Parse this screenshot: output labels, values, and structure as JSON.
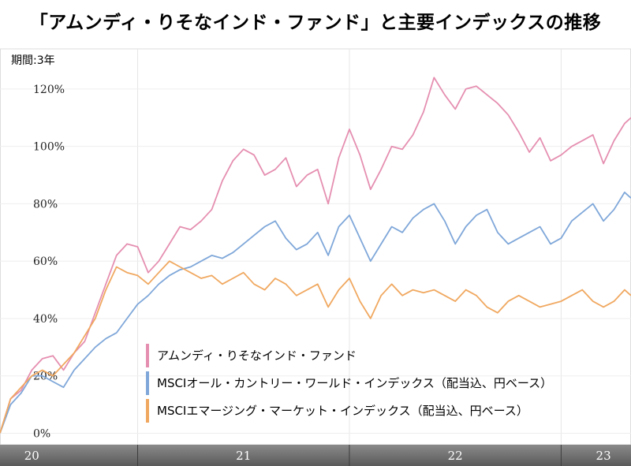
{
  "title": "「アムンディ・りそなインド・ファンド」と主要インデックスの推移",
  "period_label": "期間:3年",
  "chart_data": {
    "type": "line",
    "y_ticks": [
      "0%",
      "20%",
      "40%",
      "60%",
      "80%",
      "100%",
      "120%"
    ],
    "y_tick_values": [
      0,
      20,
      40,
      60,
      80,
      100,
      120
    ],
    "ylim": [
      -4,
      134
    ],
    "x_ticks": [
      "20",
      "21",
      "22",
      "23"
    ],
    "x_tick_positions": [
      2020.5,
      2021.5,
      2022.5,
      2023.2
    ],
    "x_boundaries": [
      2021.0,
      2022.0,
      2023.0
    ],
    "xlim": [
      2020.35,
      2023.33
    ],
    "grid": true,
    "legend_position": "bottom-right",
    "series": [
      {
        "name": "アムンディ・りそなインド・ファンド",
        "color": "#e58fb0",
        "x": [
          2020.35,
          2020.4,
          2020.45,
          2020.5,
          2020.55,
          2020.6,
          2020.65,
          2020.7,
          2020.75,
          2020.8,
          2020.85,
          2020.9,
          2020.95,
          2021.0,
          2021.05,
          2021.1,
          2021.15,
          2021.2,
          2021.25,
          2021.3,
          2021.35,
          2021.4,
          2021.45,
          2021.5,
          2021.55,
          2021.6,
          2021.65,
          2021.7,
          2021.75,
          2021.8,
          2021.85,
          2021.9,
          2021.95,
          2022.0,
          2022.05,
          2022.1,
          2022.15,
          2022.2,
          2022.25,
          2022.3,
          2022.35,
          2022.4,
          2022.45,
          2022.5,
          2022.55,
          2022.6,
          2022.65,
          2022.7,
          2022.75,
          2022.8,
          2022.85,
          2022.9,
          2022.95,
          2023.0,
          2023.05,
          2023.1,
          2023.15,
          2023.2,
          2023.25,
          2023.3,
          2023.33
        ],
        "values": [
          0,
          12,
          15,
          22,
          26,
          27,
          22,
          28,
          32,
          42,
          52,
          62,
          66,
          65,
          56,
          60,
          66,
          72,
          71,
          74,
          78,
          88,
          95,
          99,
          97,
          90,
          92,
          96,
          86,
          90,
          92,
          80,
          96,
          106,
          97,
          85,
          92,
          100,
          99,
          104,
          112,
          124,
          118,
          113,
          120,
          121,
          118,
          115,
          111,
          105,
          98,
          103,
          95,
          97,
          100,
          102,
          104,
          94,
          102,
          108,
          110
        ]
      },
      {
        "name": "MSCIオール・カントリー・ワールド・インデックス（配当込、円ベース）",
        "color": "#7fa7d9",
        "x": [
          2020.35,
          2020.4,
          2020.45,
          2020.5,
          2020.55,
          2020.6,
          2020.65,
          2020.7,
          2020.75,
          2020.8,
          2020.85,
          2020.9,
          2020.95,
          2021.0,
          2021.05,
          2021.1,
          2021.15,
          2021.2,
          2021.25,
          2021.3,
          2021.35,
          2021.4,
          2021.45,
          2021.5,
          2021.55,
          2021.6,
          2021.65,
          2021.7,
          2021.75,
          2021.8,
          2021.85,
          2021.9,
          2021.95,
          2022.0,
          2022.05,
          2022.1,
          2022.15,
          2022.2,
          2022.25,
          2022.3,
          2022.35,
          2022.4,
          2022.45,
          2022.5,
          2022.55,
          2022.6,
          2022.65,
          2022.7,
          2022.75,
          2022.8,
          2022.85,
          2022.9,
          2022.95,
          2023.0,
          2023.05,
          2023.1,
          2023.15,
          2023.2,
          2023.25,
          2023.3,
          2023.33
        ],
        "values": [
          0,
          10,
          14,
          20,
          20,
          18,
          16,
          22,
          26,
          30,
          33,
          35,
          40,
          45,
          48,
          52,
          55,
          57,
          58,
          60,
          62,
          61,
          63,
          66,
          69,
          72,
          74,
          68,
          64,
          66,
          70,
          62,
          72,
          76,
          68,
          60,
          66,
          72,
          70,
          75,
          78,
          80,
          74,
          66,
          72,
          76,
          78,
          70,
          66,
          68,
          70,
          72,
          66,
          68,
          74,
          77,
          80,
          74,
          78,
          84,
          82
        ]
      },
      {
        "name": "MSCIエマージング・マーケット・インデックス（配当込、円ベース）",
        "color": "#f0a860",
        "x": [
          2020.35,
          2020.4,
          2020.45,
          2020.5,
          2020.55,
          2020.6,
          2020.65,
          2020.7,
          2020.75,
          2020.8,
          2020.85,
          2020.9,
          2020.95,
          2021.0,
          2021.05,
          2021.1,
          2021.15,
          2021.2,
          2021.25,
          2021.3,
          2021.35,
          2021.4,
          2021.45,
          2021.5,
          2021.55,
          2021.6,
          2021.65,
          2021.7,
          2021.75,
          2021.8,
          2021.85,
          2021.9,
          2021.95,
          2022.0,
          2022.05,
          2022.1,
          2022.15,
          2022.2,
          2022.25,
          2022.3,
          2022.35,
          2022.4,
          2022.45,
          2022.5,
          2022.55,
          2022.6,
          2022.65,
          2022.7,
          2022.75,
          2022.8,
          2022.85,
          2022.9,
          2022.95,
          2023.0,
          2023.05,
          2023.1,
          2023.15,
          2023.2,
          2023.25,
          2023.3,
          2023.33
        ],
        "values": [
          0,
          12,
          16,
          20,
          22,
          20,
          24,
          28,
          34,
          40,
          50,
          58,
          56,
          55,
          52,
          56,
          60,
          58,
          56,
          54,
          55,
          52,
          54,
          56,
          52,
          50,
          54,
          52,
          48,
          50,
          52,
          44,
          50,
          54,
          46,
          40,
          48,
          52,
          48,
          50,
          49,
          50,
          48,
          46,
          50,
          48,
          44,
          42,
          46,
          48,
          46,
          44,
          45,
          46,
          48,
          50,
          46,
          44,
          46,
          50,
          48
        ]
      }
    ]
  }
}
